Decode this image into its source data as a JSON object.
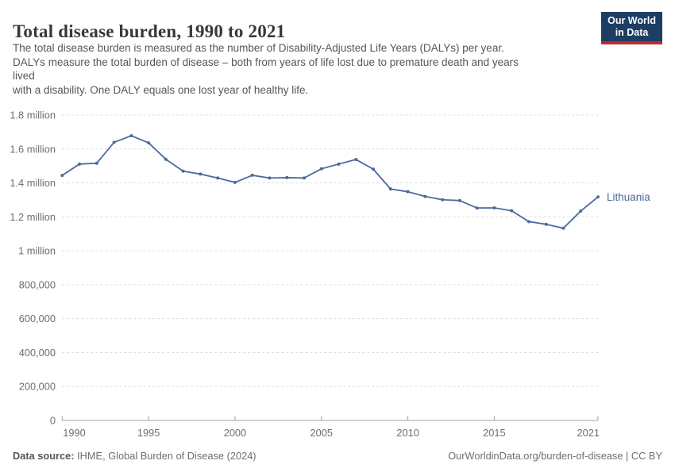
{
  "header": {
    "title": "Total disease burden, 1990 to 2021",
    "subtitle_lines": [
      "The total disease burden is measured as the number of Disability-Adjusted Life Years (DALYs) per year.",
      "DALYs measure the total burden of disease – both from years of life lost due to premature death and years",
      "lived",
      "with a disability. One DALY equals one lost year of healthy life."
    ],
    "logo_lines": [
      "Our World",
      "in Data"
    ],
    "logo_bg": "#1d3d63",
    "logo_accent": "#c0292e"
  },
  "footer": {
    "data_source_label": "Data source:",
    "data_source_value": "IHME, Global Burden of Disease (2024)",
    "attribution": "OurWorldinData.org/burden-of-disease | CC BY"
  },
  "chart_data": {
    "type": "line",
    "title": "Total disease burden, 1990 to 2021",
    "xlabel": "",
    "ylabel": "",
    "unit": "DALYs per year",
    "xlim": [
      1990,
      2021
    ],
    "ylim": [
      0,
      1800000
    ],
    "grid": "horizontal-dashed",
    "legend_position": "end-of-line-label",
    "xticks": [
      1990,
      1995,
      2000,
      2005,
      2010,
      2015,
      2021
    ],
    "yticks": [
      {
        "value": 0,
        "label": "0"
      },
      {
        "value": 200000,
        "label": "200,000"
      },
      {
        "value": 400000,
        "label": "400,000"
      },
      {
        "value": 600000,
        "label": "600,000"
      },
      {
        "value": 800000,
        "label": "800,000"
      },
      {
        "value": 1000000,
        "label": "1 million"
      },
      {
        "value": 1200000,
        "label": "1.2 million"
      },
      {
        "value": 1400000,
        "label": "1.4 million"
      },
      {
        "value": 1600000,
        "label": "1.6 million"
      },
      {
        "value": 1800000,
        "label": "1.8 million"
      }
    ],
    "series": [
      {
        "name": "Lithuania",
        "color": "#4c6a9c",
        "x": [
          1990,
          1991,
          1992,
          1993,
          1994,
          1995,
          1996,
          1997,
          1998,
          1999,
          2000,
          2001,
          2002,
          2003,
          2004,
          2005,
          2006,
          2007,
          2008,
          2009,
          2010,
          2011,
          2012,
          2013,
          2014,
          2015,
          2016,
          2017,
          2018,
          2019,
          2020,
          2021
        ],
        "values": [
          1444000,
          1511000,
          1516000,
          1639000,
          1678000,
          1636000,
          1539000,
          1469000,
          1452000,
          1429000,
          1403000,
          1445000,
          1429000,
          1431000,
          1429000,
          1483000,
          1511000,
          1538000,
          1481000,
          1364000,
          1348000,
          1320000,
          1301000,
          1296000,
          1252000,
          1253000,
          1236000,
          1172000,
          1156000,
          1133000,
          1234000,
          1317000
        ]
      }
    ]
  }
}
